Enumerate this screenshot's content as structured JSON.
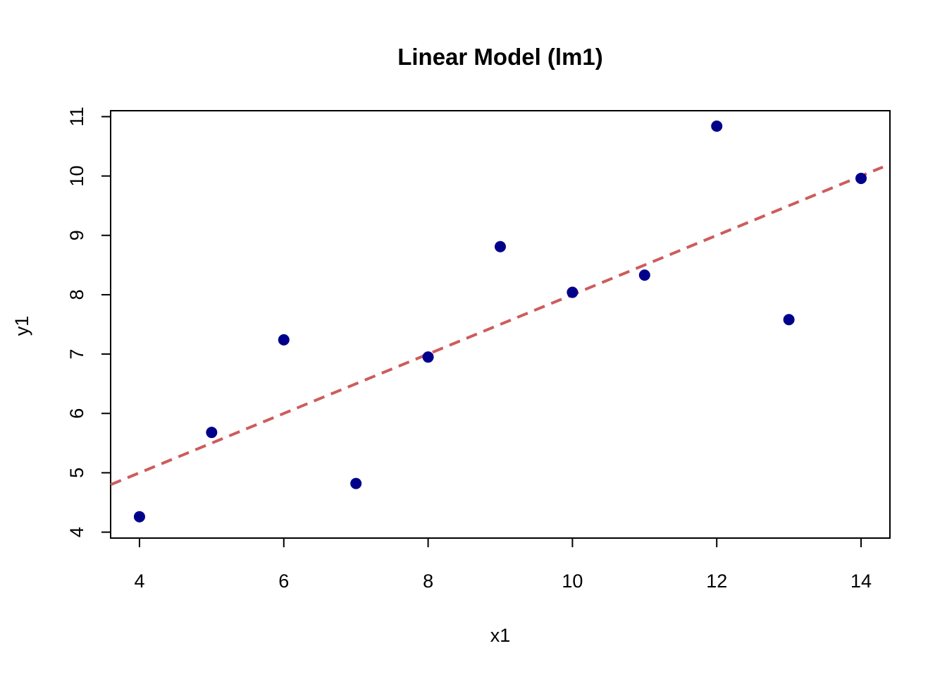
{
  "chart_data": {
    "type": "scatter",
    "title": "Linear Model (lm1)",
    "xlabel": "x1",
    "ylabel": "y1",
    "xlim": [
      3.6,
      14.4
    ],
    "ylim": [
      3.9,
      11.1
    ],
    "x_ticks": [
      4,
      6,
      8,
      10,
      12,
      14
    ],
    "y_ticks": [
      4,
      5,
      6,
      7,
      8,
      9,
      10,
      11
    ],
    "x_tick_labels": [
      "4",
      "6",
      "8",
      "10",
      "12",
      "14"
    ],
    "y_tick_labels": [
      "4",
      "5",
      "6",
      "7",
      "8",
      "9",
      "10",
      "11"
    ],
    "grid": false,
    "points": {
      "x": [
        10,
        8,
        13,
        9,
        11,
        14,
        6,
        4,
        12,
        7,
        5
      ],
      "y": [
        8.04,
        6.95,
        7.58,
        8.81,
        8.33,
        9.96,
        7.24,
        4.26,
        10.84,
        4.82,
        5.68
      ],
      "color": "#00008b"
    },
    "fit_line": {
      "intercept": 3.0,
      "slope": 0.5,
      "style": "dashed",
      "color": "#cd5c5c"
    }
  }
}
